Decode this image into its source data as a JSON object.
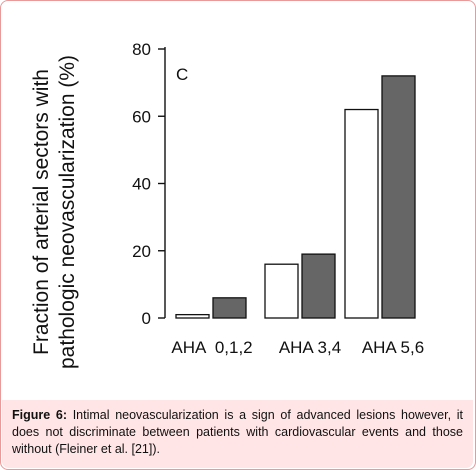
{
  "chart_data": {
    "type": "bar",
    "panel_label": "C",
    "ylabel_line1": "Fraction of arterial sectors with",
    "ylabel_line2": "pathologic neovascularization (%)",
    "ylim": [
      0,
      80
    ],
    "yticks": [
      "0",
      "20",
      "40",
      "60",
      "80"
    ],
    "xlabels": [
      "AHA  0,1,2",
      "AHA 3,4",
      "AHA 5,6"
    ],
    "categories": [
      "AHA 0,1,2",
      "AHA 3,4",
      "AHA 5,6"
    ],
    "series": [
      {
        "values": [
          1,
          16,
          62
        ],
        "color": "#ffffff"
      },
      {
        "values": [
          6,
          19,
          72
        ],
        "color": "#666666"
      }
    ],
    "grid": false
  },
  "caption": {
    "label": "Figure 6:",
    "text": " Intimal neovascularization is a sign of advanced lesions however, it does not discriminate between patients with cardiovascular events and those without (Fleiner et al. [21])."
  }
}
